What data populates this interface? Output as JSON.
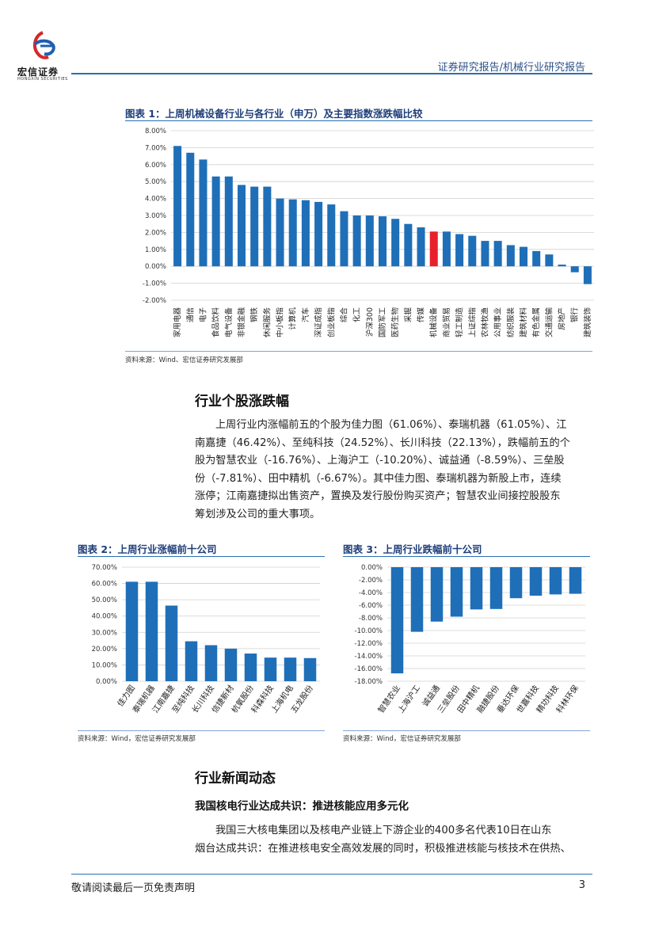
{
  "header": {
    "brand_name": "宏信证券",
    "brand_sub": "HONGXIN SECURITIES",
    "report_type": "证券研究报告/机械行业研究报告"
  },
  "figure1": {
    "title": "图表 1：上周机械设备行业与各行业（申万）及主要指数涨跌幅比较",
    "source": "资料来源：Wind、宏信证券研究发展部"
  },
  "section1": {
    "title": "行业个股涨跌幅",
    "paragraph_lines": [
      "上周行业内涨幅前五的个股为佳力图（61.06%）、泰瑞机器（61.05%）、江",
      "南嘉捷（46.42%）、至纯科技（24.52%）、长川科技（22.13%），跌幅前五的个",
      "股为智慧农业（-16.76%）、上海沪工（-10.20%）、诚益通（-8.59%）、三垒股",
      "份（-7.81%）、田中精机（-6.67%）。其中佳力图、泰瑞机器为新股上市，连续",
      "涨停；江南嘉捷拟出售资产，置换及发行股份购买资产；智慧农业间接控股股东",
      "筹划涉及公司的重大事项。"
    ]
  },
  "figure2": {
    "title": "图表 2：上周行业涨幅前十公司",
    "source": "资料来源：Wind，宏信证券研究发展部"
  },
  "figure3": {
    "title": "图表 3：上周行业跌幅前十公司",
    "source": "资料来源：Wind，宏信证券研究发展部"
  },
  "section2": {
    "title": "行业新闻动态",
    "subtitle": "我国核电行业达成共识：推进核能应用多元化",
    "paragraph_lines": [
      "我国三大核电集团以及核电产业链上下游企业的400多名代表10日在山东",
      "烟台达成共识：在推进核电安全高效发展的同时，积极推进核能与核技术在供热、"
    ]
  },
  "footer": {
    "disclaimer": "敬请阅读最后一页免责声明",
    "page_number": "3"
  },
  "colors": {
    "bar": "#1f6fb8",
    "highlight": "#e8202a",
    "accent": "#2a6fb3",
    "title": "#1f3f7a"
  },
  "chart_data": [
    {
      "type": "bar",
      "title": "图表 1：上周机械设备行业与各行业（申万）及主要指数涨跌幅比较",
      "categories": [
        "家用电器",
        "通信",
        "电子",
        "食品饮料",
        "电气设备",
        "非银金融",
        "钢铁",
        "休闲服务",
        "中小板指",
        "计算机",
        "汽车",
        "深证成指",
        "创业板指",
        "综合",
        "化工",
        "沪深300",
        "国防军工",
        "医药生物",
        "采掘",
        "传媒",
        "机械设备",
        "商业贸易",
        "轻工制造",
        "上证综指",
        "农林牧渔",
        "公用事业",
        "纺织服装",
        "建筑材料",
        "有色金属",
        "交通运输",
        "房地产",
        "银行",
        "建筑装饰"
      ],
      "values": [
        7.1,
        6.7,
        6.3,
        5.3,
        5.3,
        4.8,
        4.7,
        4.7,
        4.0,
        3.95,
        3.9,
        3.8,
        3.65,
        3.25,
        3.0,
        3.0,
        2.95,
        2.8,
        2.5,
        2.3,
        2.05,
        2.05,
        1.9,
        1.8,
        1.5,
        1.5,
        1.25,
        1.15,
        0.9,
        0.7,
        0.1,
        -0.35,
        -1.05
      ],
      "highlight": "机械设备",
      "ylim": [
        -2,
        8
      ],
      "y_ticks": [
        "-2.00%",
        "-1.00%",
        "0.00%",
        "1.00%",
        "2.00%",
        "3.00%",
        "4.00%",
        "5.00%",
        "6.00%",
        "7.00%",
        "8.00%"
      ],
      "unit": "%",
      "grid": true
    },
    {
      "type": "bar",
      "title": "图表 2：上周行业涨幅前十公司",
      "categories": [
        "佳力图",
        "泰瑞机器",
        "江南嘉捷",
        "至纯科技",
        "长川科技",
        "信捷新材",
        "杭氧股份",
        "科森科技",
        "上海机电",
        "五龙股份"
      ],
      "values": [
        61.06,
        61.05,
        46.42,
        24.52,
        22.13,
        20.0,
        17.0,
        14.5,
        14.5,
        14.2
      ],
      "ylim": [
        0,
        70
      ],
      "y_ticks": [
        "0.00%",
        "10.00%",
        "20.00%",
        "30.00%",
        "40.00%",
        "50.00%",
        "60.00%",
        "70.00%"
      ],
      "unit": "%",
      "grid": true
    },
    {
      "type": "bar",
      "title": "图表 3：上周行业跌幅前十公司",
      "categories": [
        "智慧农业",
        "上海沪工",
        "诚益通",
        "三垒股份",
        "田中精机",
        "融捷股份",
        "垂达环保",
        "世嘉科技",
        "精功科技",
        "科林环保"
      ],
      "values": [
        -16.76,
        -10.2,
        -8.59,
        -7.81,
        -6.67,
        -6.6,
        -4.9,
        -4.5,
        -4.3,
        -4.2
      ],
      "ylim": [
        -18,
        0
      ],
      "y_ticks": [
        "-18.00%",
        "-16.00%",
        "-14.00%",
        "-12.00%",
        "-10.00%",
        "-8.00%",
        "-6.00%",
        "-4.00%",
        "-2.00%",
        "0.00%"
      ],
      "unit": "%",
      "grid": true
    }
  ]
}
